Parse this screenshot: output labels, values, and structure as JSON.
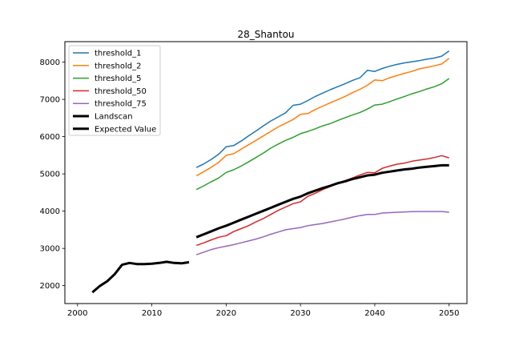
{
  "chart_data": {
    "type": "line",
    "title": "28_Shantou",
    "xlabel": "",
    "ylabel": "",
    "xlim": [
      1998.3,
      2052.4
    ],
    "ylim": [
      1520,
      8550
    ],
    "xticks": [
      2000,
      2010,
      2020,
      2030,
      2040,
      2050
    ],
    "yticks": [
      2000,
      3000,
      4000,
      5000,
      6000,
      7000,
      8000
    ],
    "xtick_labels": [
      "2000",
      "2010",
      "2020",
      "2030",
      "2040",
      "2050"
    ],
    "ytick_labels": [
      "2000",
      "3000",
      "4000",
      "5000",
      "6000",
      "7000",
      "8000"
    ],
    "grid": false,
    "legend_position": "top-left",
    "series": [
      {
        "name": "threshold_1",
        "color": "#1f77b4",
        "line_width": 1.5,
        "x": [
          2016,
          2017,
          2018,
          2019,
          2020,
          2021,
          2022,
          2023,
          2024,
          2025,
          2026,
          2027,
          2028,
          2029,
          2030,
          2031,
          2032,
          2033,
          2034,
          2035,
          2036,
          2037,
          2038,
          2039,
          2040,
          2041,
          2042,
          2043,
          2044,
          2045,
          2046,
          2047,
          2048,
          2049,
          2050
        ],
        "y": [
          5170,
          5270,
          5390,
          5530,
          5730,
          5760,
          5880,
          6020,
          6150,
          6290,
          6420,
          6530,
          6640,
          6840,
          6870,
          6970,
          7080,
          7170,
          7260,
          7340,
          7420,
          7510,
          7580,
          7780,
          7750,
          7830,
          7890,
          7940,
          7980,
          8010,
          8040,
          8080,
          8110,
          8160,
          8300
        ]
      },
      {
        "name": "threshold_2",
        "color": "#ff7f0e",
        "line_width": 1.5,
        "x": [
          2016,
          2017,
          2018,
          2019,
          2020,
          2021,
          2022,
          2023,
          2024,
          2025,
          2026,
          2027,
          2028,
          2029,
          2030,
          2031,
          2032,
          2033,
          2034,
          2035,
          2036,
          2037,
          2038,
          2039,
          2040,
          2041,
          2042,
          2043,
          2044,
          2045,
          2046,
          2047,
          2048,
          2049,
          2050
        ],
        "y": [
          4950,
          5060,
          5180,
          5310,
          5500,
          5540,
          5660,
          5780,
          5900,
          6020,
          6140,
          6260,
          6360,
          6460,
          6600,
          6620,
          6730,
          6820,
          6910,
          6990,
          7080,
          7180,
          7270,
          7380,
          7520,
          7500,
          7580,
          7640,
          7700,
          7750,
          7820,
          7860,
          7900,
          7950,
          8100
        ]
      },
      {
        "name": "threshold_5",
        "color": "#2ca02c",
        "line_width": 1.5,
        "x": [
          2016,
          2017,
          2018,
          2019,
          2020,
          2021,
          2022,
          2023,
          2024,
          2025,
          2026,
          2027,
          2028,
          2029,
          2030,
          2031,
          2032,
          2033,
          2034,
          2035,
          2036,
          2037,
          2038,
          2039,
          2040,
          2041,
          2042,
          2043,
          2044,
          2045,
          2046,
          2047,
          2048,
          2049,
          2050
        ],
        "y": [
          4580,
          4680,
          4790,
          4890,
          5040,
          5110,
          5210,
          5320,
          5440,
          5560,
          5690,
          5800,
          5900,
          5980,
          6080,
          6140,
          6210,
          6290,
          6350,
          6430,
          6510,
          6580,
          6650,
          6740,
          6850,
          6870,
          6940,
          7010,
          7080,
          7150,
          7210,
          7280,
          7340,
          7420,
          7560
        ]
      },
      {
        "name": "threshold_50",
        "color": "#d62728",
        "line_width": 1.5,
        "x": [
          2016,
          2017,
          2018,
          2019,
          2020,
          2021,
          2022,
          2023,
          2024,
          2025,
          2026,
          2027,
          2028,
          2029,
          2030,
          2031,
          2032,
          2033,
          2034,
          2035,
          2036,
          2037,
          2038,
          2039,
          2040,
          2041,
          2042,
          2043,
          2044,
          2045,
          2046,
          2047,
          2048,
          2049,
          2050
        ],
        "y": [
          3080,
          3150,
          3230,
          3300,
          3340,
          3450,
          3530,
          3610,
          3710,
          3800,
          3910,
          4020,
          4110,
          4200,
          4250,
          4400,
          4480,
          4580,
          4660,
          4750,
          4820,
          4890,
          4970,
          5040,
          5030,
          5150,
          5210,
          5260,
          5290,
          5340,
          5370,
          5400,
          5440,
          5490,
          5430
        ]
      },
      {
        "name": "threshold_75",
        "color": "#9467bd",
        "line_width": 1.5,
        "x": [
          2016,
          2017,
          2018,
          2019,
          2020,
          2021,
          2022,
          2023,
          2024,
          2025,
          2026,
          2027,
          2028,
          2029,
          2030,
          2031,
          2032,
          2033,
          2034,
          2035,
          2036,
          2037,
          2038,
          2039,
          2040,
          2041,
          2042,
          2043,
          2044,
          2045,
          2046,
          2047,
          2048,
          2049,
          2050
        ],
        "y": [
          2830,
          2900,
          2970,
          3020,
          3060,
          3100,
          3150,
          3200,
          3250,
          3310,
          3380,
          3440,
          3500,
          3530,
          3560,
          3610,
          3640,
          3670,
          3710,
          3750,
          3790,
          3840,
          3880,
          3910,
          3910,
          3950,
          3960,
          3970,
          3980,
          3985,
          3990,
          3990,
          3990,
          3990,
          3970
        ]
      },
      {
        "name": "Landscan",
        "color": "#000000",
        "line_width": 3,
        "x": [
          2002,
          2003,
          2004,
          2005,
          2006,
          2007,
          2008,
          2009,
          2010,
          2011,
          2012,
          2013,
          2014,
          2015
        ],
        "y": [
          1820,
          1990,
          2120,
          2310,
          2560,
          2610,
          2580,
          2580,
          2590,
          2610,
          2640,
          2610,
          2600,
          2630
        ]
      },
      {
        "name": "Expected Value",
        "color": "#000000",
        "line_width": 3,
        "x": [
          2016,
          2017,
          2018,
          2019,
          2020,
          2021,
          2022,
          2023,
          2024,
          2025,
          2026,
          2027,
          2028,
          2029,
          2030,
          2031,
          2032,
          2033,
          2034,
          2035,
          2036,
          2037,
          2038,
          2039,
          2040,
          2041,
          2042,
          2043,
          2044,
          2045,
          2046,
          2047,
          2048,
          2049,
          2050
        ],
        "y": [
          3300,
          3380,
          3460,
          3540,
          3610,
          3690,
          3770,
          3850,
          3930,
          4010,
          4090,
          4170,
          4250,
          4330,
          4390,
          4480,
          4550,
          4620,
          4680,
          4750,
          4800,
          4860,
          4910,
          4960,
          4980,
          5030,
          5060,
          5090,
          5120,
          5140,
          5170,
          5190,
          5210,
          5230,
          5230
        ]
      }
    ]
  }
}
